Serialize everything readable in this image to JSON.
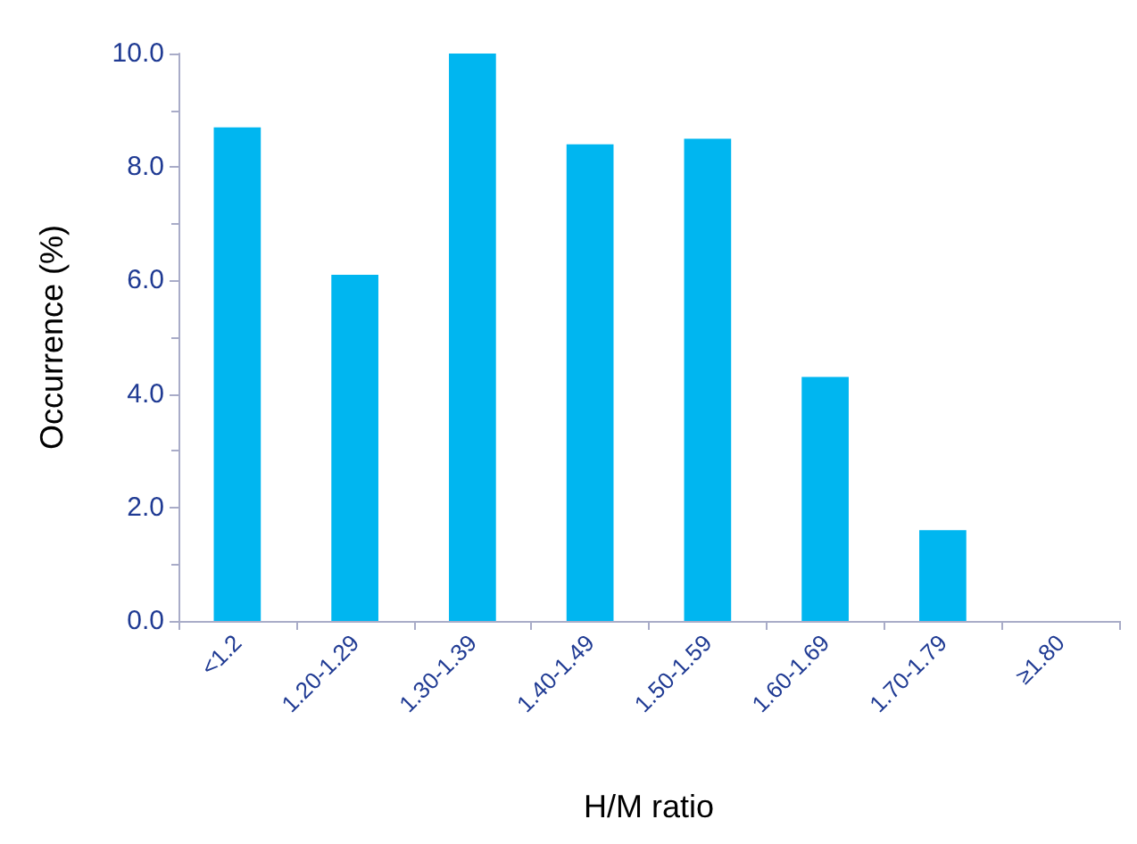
{
  "chart_data": {
    "type": "bar",
    "xlabel": "H/M ratio",
    "ylabel": "Occurrence (%)",
    "categories": [
      "<1.2",
      "1.20-1.29",
      "1.30-1.39",
      "1.40-1.49",
      "1.50-1.59",
      "1.60-1.69",
      "1.70-1.79",
      "≥1.80"
    ],
    "values": [
      8.7,
      6.1,
      10.0,
      8.4,
      8.5,
      4.3,
      1.6,
      0
    ],
    "color": "#00b6f0",
    "ylim": [
      0,
      10
    ],
    "yticks": [
      {
        "value": 0,
        "label": "0.0"
      },
      {
        "value": 2,
        "label": "2.0"
      },
      {
        "value": 4,
        "label": "4.0"
      },
      {
        "value": 6,
        "label": "6.0"
      },
      {
        "value": 8,
        "label": "8.0"
      },
      {
        "value": 10,
        "label": "10.0"
      }
    ],
    "grid": false
  }
}
